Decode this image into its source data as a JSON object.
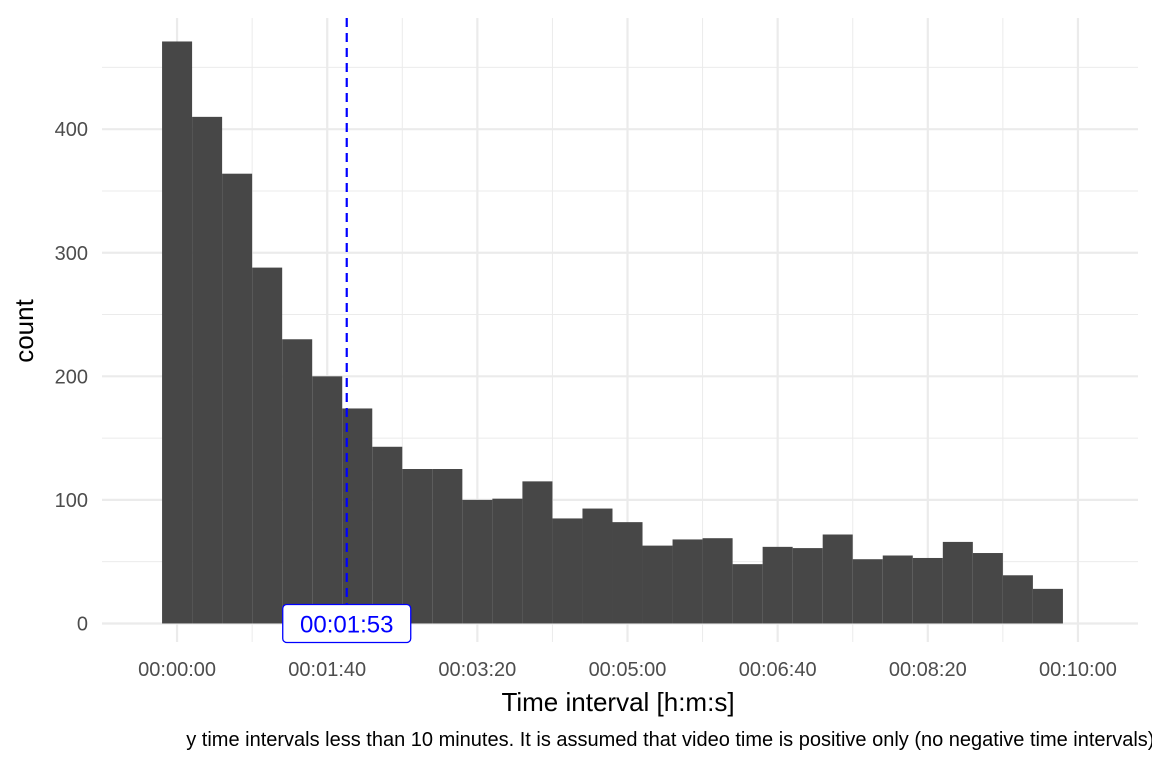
{
  "chart_data": {
    "type": "bar",
    "xlabel": "Time interval [h:m:s]",
    "ylabel": "count",
    "x_unit": "seconds",
    "bin_width": 20,
    "bin_centers": [
      0,
      20,
      40,
      60,
      80,
      100,
      120,
      140,
      160,
      180,
      200,
      220,
      240,
      260,
      280,
      300,
      320,
      340,
      360,
      380,
      400,
      420,
      440,
      460,
      480,
      500,
      520,
      540,
      560,
      580,
      600
    ],
    "values": [
      471,
      410,
      364,
      288,
      230,
      200,
      174,
      143,
      125,
      125,
      100,
      101,
      115,
      85,
      93,
      82,
      63,
      68,
      69,
      48,
      62,
      61,
      72,
      52,
      55,
      53,
      66,
      57,
      39,
      28,
      0
    ],
    "xlim": [
      -50,
      640
    ],
    "ylim": [
      -15,
      490
    ],
    "x_ticks": [
      {
        "value": 0,
        "label": "00:00:00"
      },
      {
        "value": 100,
        "label": "00:01:40"
      },
      {
        "value": 200,
        "label": "00:03:20"
      },
      {
        "value": 300,
        "label": "00:05:00"
      },
      {
        "value": 400,
        "label": "00:06:40"
      },
      {
        "value": 500,
        "label": "00:08:20"
      },
      {
        "value": 600,
        "label": "00:10:00"
      }
    ],
    "y_ticks": [
      {
        "value": 0,
        "label": "0"
      },
      {
        "value": 100,
        "label": "100"
      },
      {
        "value": 200,
        "label": "200"
      },
      {
        "value": 300,
        "label": "300"
      },
      {
        "value": 400,
        "label": "400"
      }
    ],
    "grid": true,
    "bar_color": "#474747",
    "reference_line": {
      "value": 113,
      "label": "00:01:53",
      "color": "#0000ff",
      "style": "dashed"
    },
    "caption": "y time intervals less than 10 minutes. It is assumed that video time is positive only (no negative time intervals)."
  }
}
